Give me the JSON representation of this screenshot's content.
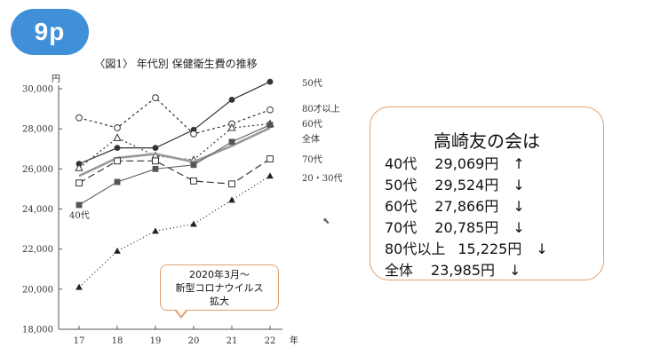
{
  "page_badge": "9p",
  "chart_data": {
    "type": "line",
    "title": "〈図1〉 年代別 保健衛生費の推移",
    "y_unit_label": "円",
    "x_unit_label": "年",
    "categories": [
      "17",
      "18",
      "19",
      "20",
      "21",
      "22"
    ],
    "y_ticks": [
      "18,000",
      "20,000",
      "22,000",
      "24,000",
      "26,000",
      "28,000",
      "30,000"
    ],
    "ylim": [
      18000,
      30000
    ],
    "series": [
      {
        "name": "50代",
        "values": [
          26250,
          27050,
          27050,
          27950,
          29450,
          30350
        ],
        "color": "#333333",
        "dash": "",
        "marker": "circle-filled"
      },
      {
        "name": "80才以上",
        "values": [
          28550,
          28050,
          29550,
          27750,
          28250,
          28950
        ],
        "color": "#333333",
        "dash": "3,3",
        "marker": "circle-open"
      },
      {
        "name": "60代",
        "values": [
          26050,
          27550,
          26650,
          26450,
          28050,
          28250
        ],
        "color": "#333333",
        "dash": "2,3",
        "marker": "triangle-open"
      },
      {
        "name": "全体",
        "values": [
          25650,
          26550,
          26750,
          26350,
          27150,
          28050
        ],
        "color": "#999999",
        "dash": "",
        "marker": "none"
      },
      {
        "name": "70代",
        "values": [
          25300,
          26400,
          26400,
          25400,
          25250,
          26500
        ],
        "color": "#333333",
        "dash": "8,4",
        "marker": "square-open"
      },
      {
        "name": "40代",
        "values": [
          24200,
          25350,
          26000,
          26200,
          27350,
          28200
        ],
        "color": "#666666",
        "dash": "",
        "marker": "square-filled"
      },
      {
        "name": "20・30代",
        "values": [
          20100,
          21900,
          22900,
          23250,
          24450,
          25650
        ],
        "color": "#222222",
        "dash": "1,3",
        "marker": "triangle-filled"
      }
    ],
    "grid": false,
    "legend": "right, end-of-line labels"
  },
  "callout": {
    "line1": "2020年3月～",
    "line2": "新型コロナウイルス",
    "line3": "拡大"
  },
  "summary": {
    "title": "高崎友の会は",
    "rows": [
      {
        "label": "40代",
        "value": "29,069円",
        "arrow": "↑"
      },
      {
        "label": "50代",
        "value": "29,524円",
        "arrow": "↓"
      },
      {
        "label": "60代",
        "value": "27,866円",
        "arrow": "↓"
      },
      {
        "label": "70代",
        "value": "20,785円",
        "arrow": "↓"
      },
      {
        "label": "80代以上",
        "value": "15,225円",
        "arrow": "↓"
      },
      {
        "label": "全体",
        "value": "23,985円",
        "arrow": "↓"
      }
    ]
  }
}
